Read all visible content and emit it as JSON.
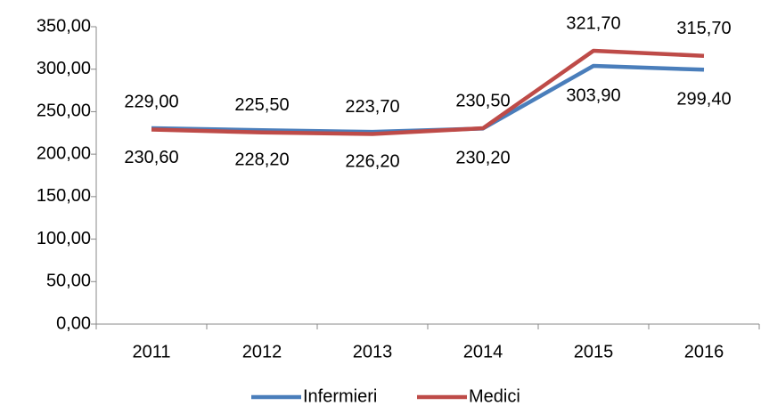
{
  "chart_data": {
    "type": "line",
    "categories": [
      "2011",
      "2012",
      "2013",
      "2014",
      "2015",
      "2016"
    ],
    "series": [
      {
        "name": "Infermieri",
        "color": "#4a7ebb",
        "values": [
          230.6,
          228.2,
          226.2,
          230.2,
          303.9,
          299.4
        ],
        "value_labels": [
          "230,60",
          "228,20",
          "226,20",
          "230,20",
          "303,90",
          "299,40"
        ]
      },
      {
        "name": "Medici",
        "color": "#be4b48",
        "values": [
          229.0,
          225.5,
          223.7,
          230.5,
          321.7,
          315.7
        ],
        "value_labels": [
          "229,00",
          "225,50",
          "223,70",
          "230,50",
          "321,70",
          "315,70"
        ]
      }
    ],
    "ylim": [
      0,
      350
    ],
    "yticks": [
      {
        "value": 0,
        "label": "0,00"
      },
      {
        "value": 50,
        "label": "50,00"
      },
      {
        "value": 100,
        "label": "100,00"
      },
      {
        "value": 150,
        "label": "150,00"
      },
      {
        "value": 200,
        "label": "200,00"
      },
      {
        "value": 250,
        "label": "250,00"
      },
      {
        "value": 300,
        "label": "300,00"
      },
      {
        "value": 350,
        "label": "350,00"
      }
    ],
    "grid": false,
    "legend": "bottom"
  }
}
